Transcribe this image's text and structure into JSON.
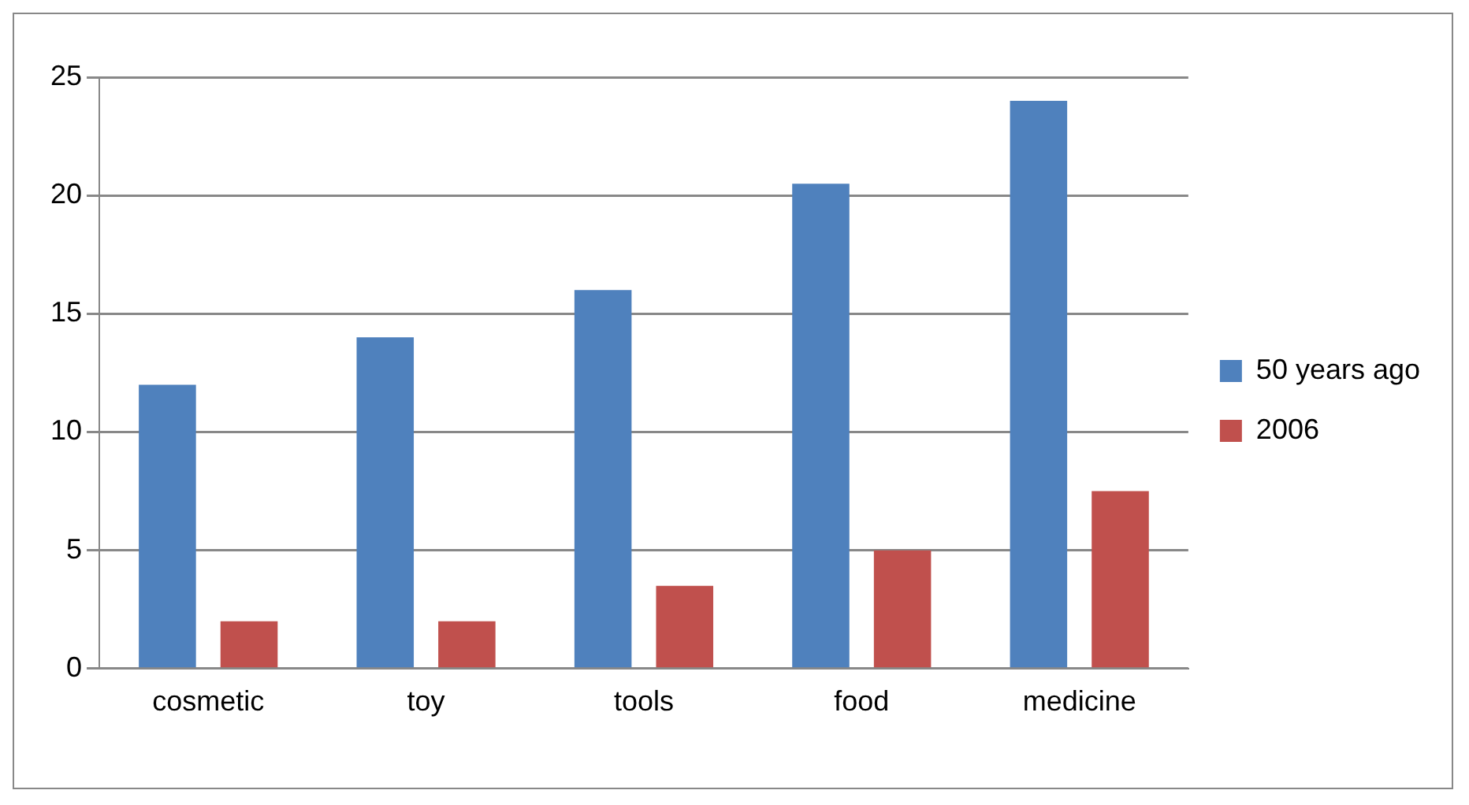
{
  "chart_data": {
    "type": "bar",
    "categories": [
      "cosmetic",
      "toy",
      "tools",
      "food",
      "medicine"
    ],
    "series": [
      {
        "name": "50 years ago",
        "color": "#4f81bd",
        "values": [
          12,
          14,
          16,
          20.5,
          24
        ]
      },
      {
        "name": "2006",
        "color": "#c0504d",
        "values": [
          2,
          2,
          3.5,
          5,
          7.5
        ]
      }
    ],
    "ylim": [
      0,
      25
    ],
    "yticks": [
      0,
      5,
      10,
      15,
      20,
      25
    ],
    "grid": "y",
    "legend": "right"
  }
}
